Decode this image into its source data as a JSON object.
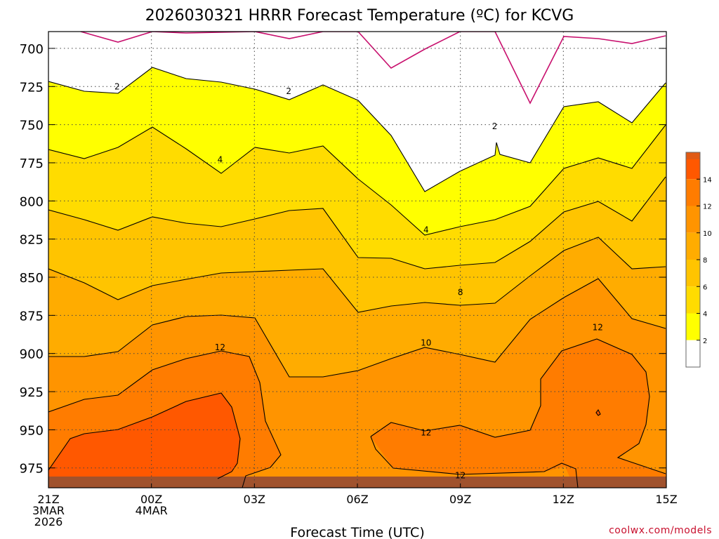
{
  "chart_data": {
    "type": "heatmap",
    "title": "2026030321 HRRR Forecast Temperature (ºC) for KCVG",
    "xlabel": "Forecast Time (UTC)",
    "ylabel": "",
    "x_ticks": [
      {
        "hour": 0,
        "lines": [
          "21Z",
          "3MAR",
          "2026"
        ]
      },
      {
        "hour": 3,
        "lines": [
          "00Z",
          "4MAR"
        ]
      },
      {
        "hour": 6,
        "lines": [
          "03Z"
        ]
      },
      {
        "hour": 9,
        "lines": [
          "06Z"
        ]
      },
      {
        "hour": 12,
        "lines": [
          "09Z"
        ]
      },
      {
        "hour": 15,
        "lines": [
          "12Z"
        ]
      },
      {
        "hour": 18,
        "lines": [
          "15Z"
        ]
      }
    ],
    "xlim": [
      0,
      18
    ],
    "y_ticks": [
      700,
      725,
      750,
      775,
      800,
      825,
      850,
      875,
      900,
      925,
      950,
      975
    ],
    "ylim": [
      988,
      689
    ],
    "levels": [
      0,
      2,
      4,
      6,
      8,
      10,
      12,
      14,
      16
    ],
    "fill_colors": [
      "#ffffff",
      "#ffff00",
      "#ffdc00",
      "#ffc400",
      "#ffac00",
      "#ff9400",
      "#ff7c00",
      "#ff5800",
      "#ff5800"
    ],
    "colorbar_ticks": [
      2,
      4,
      6,
      8,
      10,
      12,
      14
    ],
    "colorbar_colors": [
      "#ffffff",
      "#ffff00",
      "#ffdc00",
      "#ffc400",
      "#ffac00",
      "#ff9400",
      "#ff7c00",
      "#ff5800"
    ],
    "colorbar_top_color": "#e05a14",
    "contour_labels": [
      {
        "text": "2",
        "hour": 2,
        "pressure": 725
      },
      {
        "text": "2",
        "hour": 7,
        "pressure": 728
      },
      {
        "text": "2",
        "hour": 13,
        "pressure": 751
      },
      {
        "text": "4",
        "hour": 5,
        "pressure": 773
      },
      {
        "text": "4",
        "hour": 11,
        "pressure": 819
      },
      {
        "text": "8",
        "hour": 12,
        "pressure": 860
      },
      {
        "text": "10",
        "hour": 11,
        "pressure": 893
      },
      {
        "text": "12",
        "hour": 5,
        "pressure": 896
      },
      {
        "text": "12",
        "hour": 11,
        "pressure": 952
      },
      {
        "text": "12",
        "hour": 12,
        "pressure": 980
      },
      {
        "text": "12",
        "hour": 16,
        "pressure": 883
      }
    ],
    "freezing_line_color": "#c8106e",
    "ground_color": "#a0522d",
    "grid": true
  },
  "credit": "coolwx.com/models"
}
